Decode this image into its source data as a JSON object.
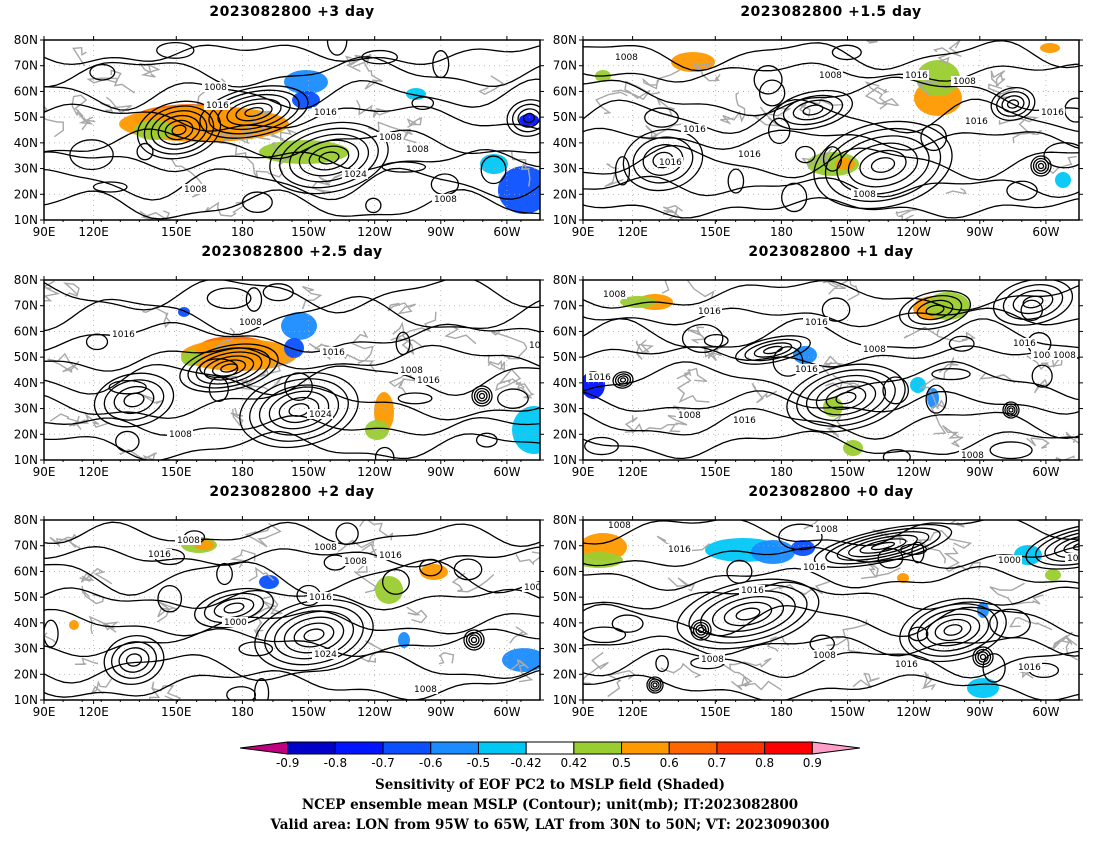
{
  "panels": [
    {
      "id": "p1",
      "title": "2023082800 +3 day"
    },
    {
      "id": "p2",
      "title": "2023082800 +1.5 day"
    },
    {
      "id": "p3",
      "title": "2023082800 +2.5 day"
    },
    {
      "id": "p4",
      "title": "2023082800 +1 day"
    },
    {
      "id": "p5",
      "title": "2023082800 +2 day"
    },
    {
      "id": "p6",
      "title": "2023082800 +0 day"
    }
  ],
  "axes": {
    "lon_ticks": [
      "90E",
      "120E",
      "150E",
      "180",
      "150W",
      "120W",
      "90W",
      "60W"
    ],
    "lat_ticks": [
      "10N",
      "20N",
      "30N",
      "40N",
      "50N",
      "60N",
      "70N",
      "80N"
    ],
    "lon_range": [
      "90E",
      "40W"
    ],
    "lat_range": [
      10,
      80
    ]
  },
  "contour_labels": {
    "p1": [
      "1008",
      "1016",
      "1016",
      "1008",
      "1008",
      "1024",
      "1008",
      "1008"
    ],
    "p2": [
      "1008",
      "1008",
      "1016",
      "1008",
      "1016",
      "1016",
      "1008",
      "1016",
      "1016",
      "1016"
    ],
    "p3": [
      "1016",
      "1008",
      "1016",
      "1008",
      "1016",
      "1024",
      "1008",
      "1016"
    ],
    "p4": [
      "1008",
      "1016",
      "1016",
      "1008",
      "1016",
      "1008",
      "1016",
      "1008",
      "1016",
      "1008",
      "1008",
      "1016"
    ],
    "p5": [
      "1008",
      "1016",
      "1008",
      "1008",
      "1016",
      "1000",
      "1024",
      "1016",
      "1008",
      "1008"
    ],
    "p6": [
      "1008",
      "1016",
      "1008",
      "1016",
      "1000",
      "1016",
      "1008",
      "1016",
      "1008",
      "1016",
      "1008"
    ]
  },
  "colorbar": {
    "colors": [
      "#c0007f",
      "#0000c8",
      "#0014ff",
      "#0a50ff",
      "#1a8cff",
      "#00c8f5",
      "#ffffff",
      "#9acd32",
      "#ff9900",
      "#ff6600",
      "#ff3300",
      "#ff0000",
      "#ff9ec8"
    ],
    "labels": [
      "-0.9",
      "-0.8",
      "-0.7",
      "-0.6",
      "-0.5",
      "-0.42",
      "0.42",
      "0.5",
      "0.6",
      "0.7",
      "0.8",
      "0.9"
    ]
  },
  "captions": {
    "line1": "Sensitivity of EOF PC2 to MSLP field (Shaded)",
    "line2": "NCEP ensemble mean MSLP (Contour); unit(mb); IT:2023082800",
    "line3": "Valid area: LON from 95W to 65W, LAT from 30N to 50N; VT: 2023090300"
  },
  "colors": {
    "contour": "#000000",
    "coastline": "#a8a8a8",
    "grid": "#aaaaaa"
  }
}
